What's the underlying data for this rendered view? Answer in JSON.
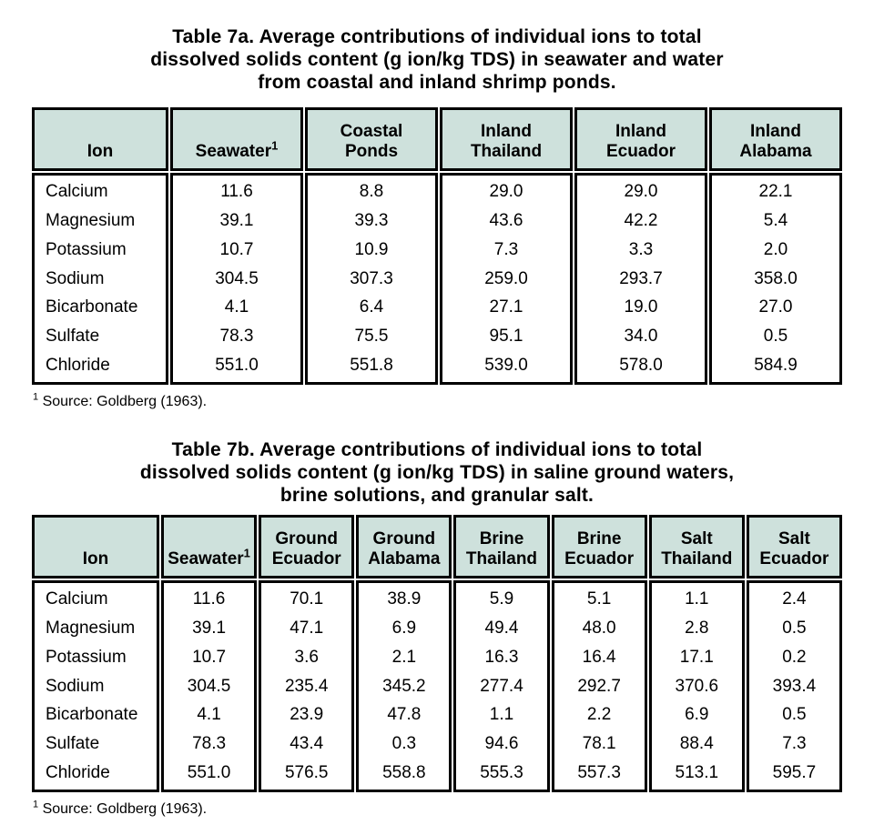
{
  "colors": {
    "page_bg": "#ffffff",
    "header_fill": "#cee1dc",
    "border": "#000000",
    "text": "#000000"
  },
  "tables": [
    {
      "name": "Table 7a",
      "title_lines": [
        "Table 7a. Average contributions of individual ions to total",
        "dissolved solids content (g ion/kg TDS) in seawater and water",
        "from coastal and inland shrimp ponds."
      ],
      "ion_header": "Ion",
      "ions": [
        "Calcium",
        "Magnesium",
        "Potassium",
        "Sodium",
        "Bicarbonate",
        "Sulfate",
        "Chloride"
      ],
      "columns": [
        {
          "header_lines": [
            "Seawater"
          ],
          "sup": "1",
          "values": [
            "11.6",
            "39.1",
            "10.7",
            "304.5",
            "4.1",
            "78.3",
            "551.0"
          ]
        },
        {
          "header_lines": [
            "Coastal",
            "Ponds"
          ],
          "sup": "",
          "values": [
            "8.8",
            "39.3",
            "10.9",
            "307.3",
            "6.4",
            "75.5",
            "551.8"
          ]
        },
        {
          "header_lines": [
            "Inland",
            "Thailand"
          ],
          "sup": "",
          "values": [
            "29.0",
            "43.6",
            "7.3",
            "259.0",
            "27.1",
            "95.1",
            "539.0"
          ]
        },
        {
          "header_lines": [
            "Inland",
            "Ecuador"
          ],
          "sup": "",
          "values": [
            "29.0",
            "42.2",
            "3.3",
            "293.7",
            "19.0",
            "34.0",
            "578.0"
          ]
        },
        {
          "header_lines": [
            "Inland",
            "Alabama"
          ],
          "sup": "",
          "values": [
            "22.1",
            "5.4",
            "2.0",
            "358.0",
            "27.0",
            "0.5",
            "584.9"
          ]
        }
      ],
      "footnote_sup": "1",
      "footnote_text": " Source: Goldberg (1963)."
    },
    {
      "name": "Table 7b",
      "title_lines": [
        "Table 7b. Average contributions of individual ions to total",
        "dissolved solids content (g ion/kg TDS) in saline ground waters,",
        "brine solutions, and granular salt."
      ],
      "ion_header": "Ion",
      "ions": [
        "Calcium",
        "Magnesium",
        "Potassium",
        "Sodium",
        "Bicarbonate",
        "Sulfate",
        "Chloride"
      ],
      "columns": [
        {
          "header_lines": [
            "Seawater"
          ],
          "sup": "1",
          "values": [
            "11.6",
            "39.1",
            "10.7",
            "304.5",
            "4.1",
            "78.3",
            "551.0"
          ]
        },
        {
          "header_lines": [
            "Ground",
            "Ecuador"
          ],
          "sup": "",
          "values": [
            "70.1",
            "47.1",
            "3.6",
            "235.4",
            "23.9",
            "43.4",
            "576.5"
          ]
        },
        {
          "header_lines": [
            "Ground",
            "Alabama"
          ],
          "sup": "",
          "values": [
            "38.9",
            "6.9",
            "2.1",
            "345.2",
            "47.8",
            "0.3",
            "558.8"
          ]
        },
        {
          "header_lines": [
            "Brine",
            "Thailand"
          ],
          "sup": "",
          "values": [
            "5.9",
            "49.4",
            "16.3",
            "277.4",
            "1.1",
            "94.6",
            "555.3"
          ]
        },
        {
          "header_lines": [
            "Brine",
            "Ecuador"
          ],
          "sup": "",
          "values": [
            "5.1",
            "48.0",
            "16.4",
            "292.7",
            "2.2",
            "78.1",
            "557.3"
          ]
        },
        {
          "header_lines": [
            "Salt",
            "Thailand"
          ],
          "sup": "",
          "values": [
            "1.1",
            "2.8",
            "17.1",
            "370.6",
            "6.9",
            "88.4",
            "513.1"
          ]
        },
        {
          "header_lines": [
            "Salt",
            "Ecuador"
          ],
          "sup": "",
          "values": [
            "2.4",
            "0.5",
            "0.2",
            "393.4",
            "0.5",
            "7.3",
            "595.7"
          ]
        }
      ],
      "footnote_sup": "1",
      "footnote_text": " Source: Goldberg (1963)."
    }
  ]
}
